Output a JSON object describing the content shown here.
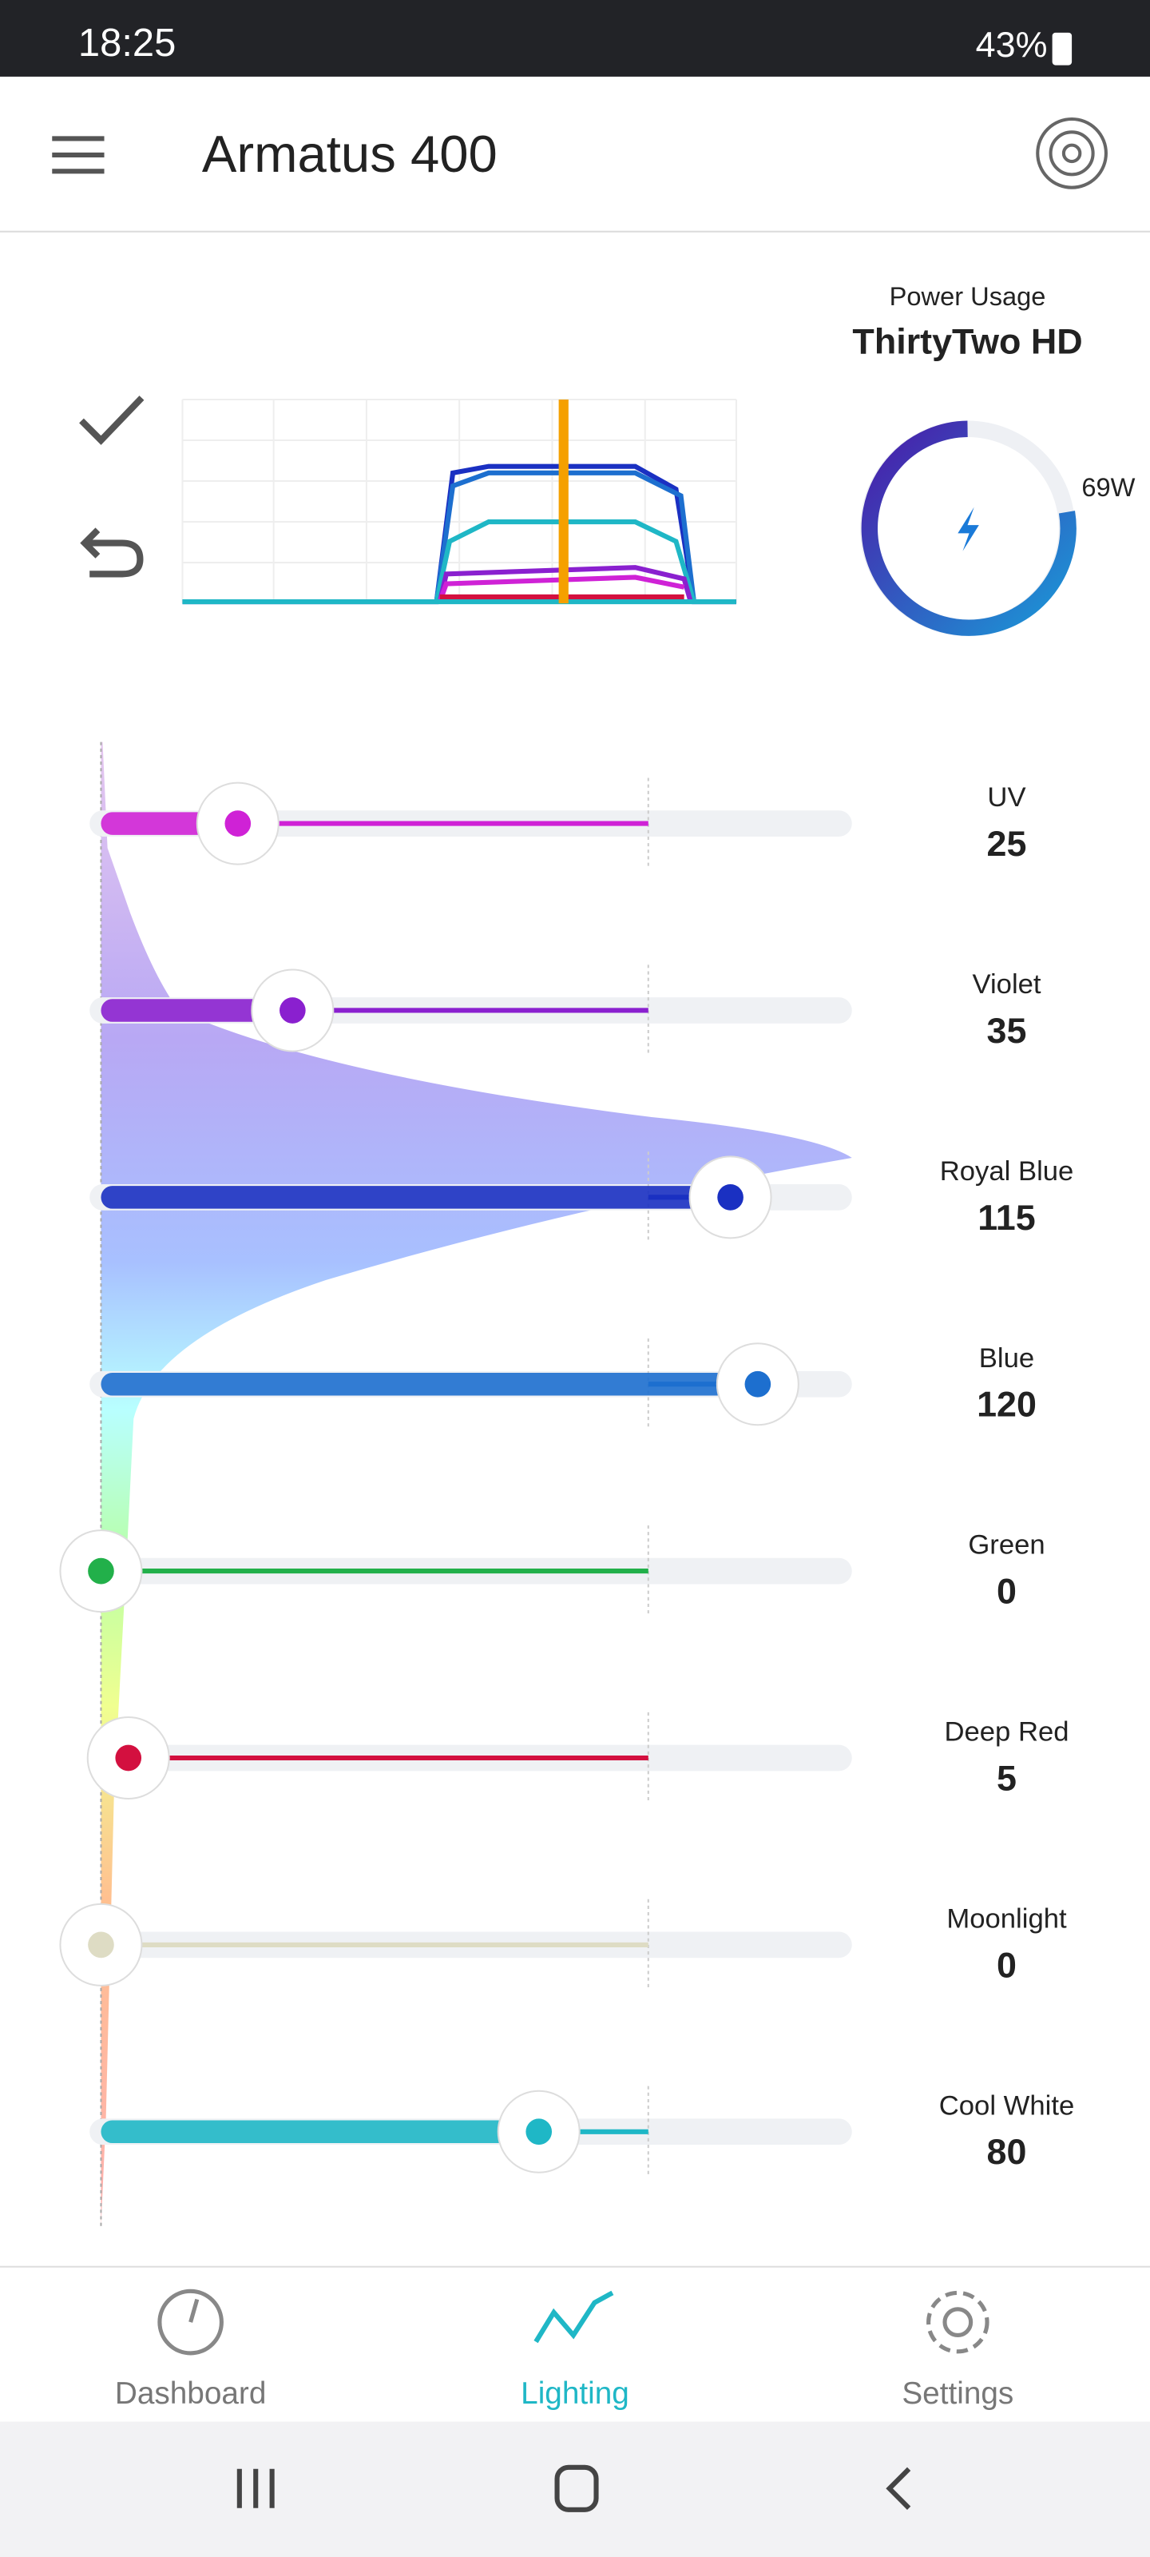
{
  "status_bar": {
    "time": "18:25",
    "battery": "43%"
  },
  "header": {
    "title": "Armatus 400"
  },
  "power": {
    "label": "Power Usage",
    "fixture": "ThirtyTwo HD",
    "watts": "69W"
  },
  "channels": [
    {
      "name": "UV",
      "value": 25,
      "color": "#cf22d6"
    },
    {
      "name": "Violet",
      "value": 35,
      "color": "#8a20cf"
    },
    {
      "name": "Royal Blue",
      "value": 115,
      "color": "#1a30c2"
    },
    {
      "name": "Blue",
      "value": 120,
      "color": "#1d6fcf"
    },
    {
      "name": "Green",
      "value": 0,
      "color": "#22b04a"
    },
    {
      "name": "Deep Red",
      "value": 5,
      "color": "#d3103f"
    },
    {
      "name": "Moonlight",
      "value": 0,
      "color": "#dedcc4"
    },
    {
      "name": "Cool White",
      "value": 80,
      "color": "#1fb7c6"
    }
  ],
  "nav": {
    "items": [
      "Dashboard",
      "Lighting",
      "Settings"
    ]
  }
}
